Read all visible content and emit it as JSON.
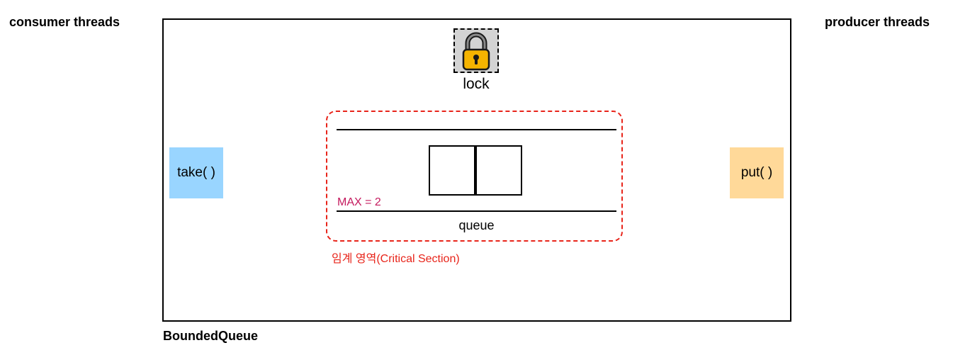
{
  "labels": {
    "consumer_threads": "consumer threads",
    "producer_threads": "producer threads",
    "bounded_queue": "BoundedQueue",
    "lock": "lock",
    "take": "take( )",
    "put": "put( )",
    "max": "MAX = 2",
    "queue": "queue",
    "critical_section": "임계 영역(Critical Section)"
  },
  "icons": {
    "lock": "padlock-icon"
  },
  "colors": {
    "take_fill": "#99d5ff",
    "put_fill": "#ffd999",
    "lock_fill": "#d3d3d3",
    "critical_border": "#e8241a",
    "max_text": "#c4195d",
    "padlock_body": "#f5b400"
  }
}
